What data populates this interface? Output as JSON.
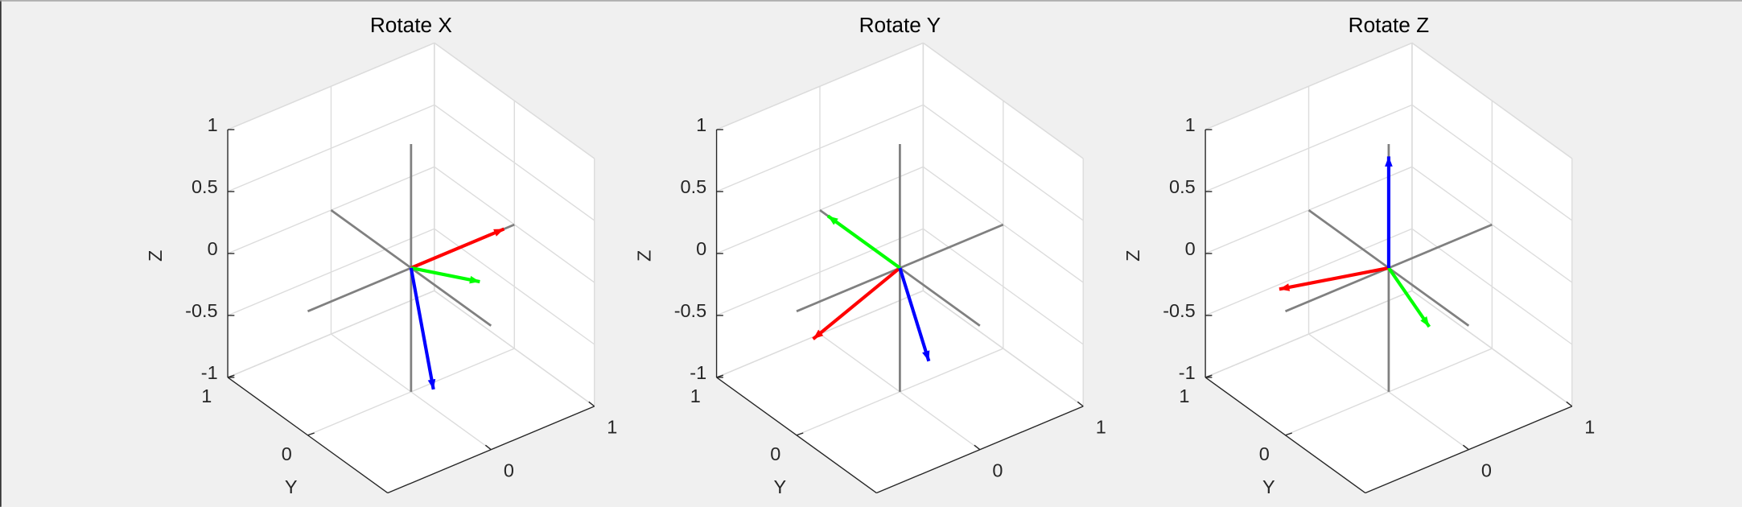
{
  "chart_data": [
    {
      "type": "quiver3",
      "title": "Rotate X",
      "zlabel": "Z",
      "ylabel": "Y",
      "xlim": [
        -1,
        1
      ],
      "ylim": [
        -1,
        1
      ],
      "zlim": [
        -1,
        1
      ],
      "xticks": [
        0,
        1
      ],
      "yticks": [
        0,
        1
      ],
      "zticks": [
        -1,
        -0.5,
        0,
        0.5,
        1
      ],
      "grid": true,
      "series": [
        {
          "color": "#ff0000",
          "values": [
            0.9,
            0,
            0
          ]
        },
        {
          "color": "#00ff00",
          "values": [
            0,
            -0.86,
            0.29
          ]
        },
        {
          "color": "#0000ff",
          "values": [
            0,
            -0.28,
            -0.85
          ]
        }
      ]
    },
    {
      "type": "quiver3",
      "title": "Rotate Y",
      "zlabel": "Z",
      "ylabel": "Y",
      "xlim": [
        -1,
        1
      ],
      "ylim": [
        -1,
        1
      ],
      "zlim": [
        -1,
        1
      ],
      "xticks": [
        0,
        1
      ],
      "yticks": [
        0,
        1
      ],
      "zticks": [
        -1,
        -0.5,
        0,
        0.5,
        1
      ],
      "grid": true,
      "series": [
        {
          "color": "#ff0000",
          "values": [
            -0.84,
            0,
            -0.28
          ]
        },
        {
          "color": "#00ff00",
          "values": [
            0,
            0.9,
            0
          ]
        },
        {
          "color": "#0000ff",
          "values": [
            0.28,
            0,
            -0.85
          ]
        }
      ]
    },
    {
      "type": "quiver3",
      "title": "Rotate Z",
      "zlabel": "Z",
      "ylabel": "Y",
      "xlim": [
        -1,
        1
      ],
      "ylim": [
        -1,
        1
      ],
      "zlim": [
        -1,
        1
      ],
      "xticks": [
        0,
        1
      ],
      "yticks": [
        0,
        1
      ],
      "zticks": [
        -1,
        -0.5,
        0,
        0.5,
        1
      ],
      "grid": true,
      "series": [
        {
          "color": "#ff0000",
          "values": [
            -0.85,
            0.27,
            0
          ]
        },
        {
          "color": "#00ff00",
          "values": [
            -0.25,
            -0.83,
            0
          ]
        },
        {
          "color": "#0000ff",
          "values": [
            0,
            0,
            0.9
          ]
        }
      ]
    }
  ]
}
